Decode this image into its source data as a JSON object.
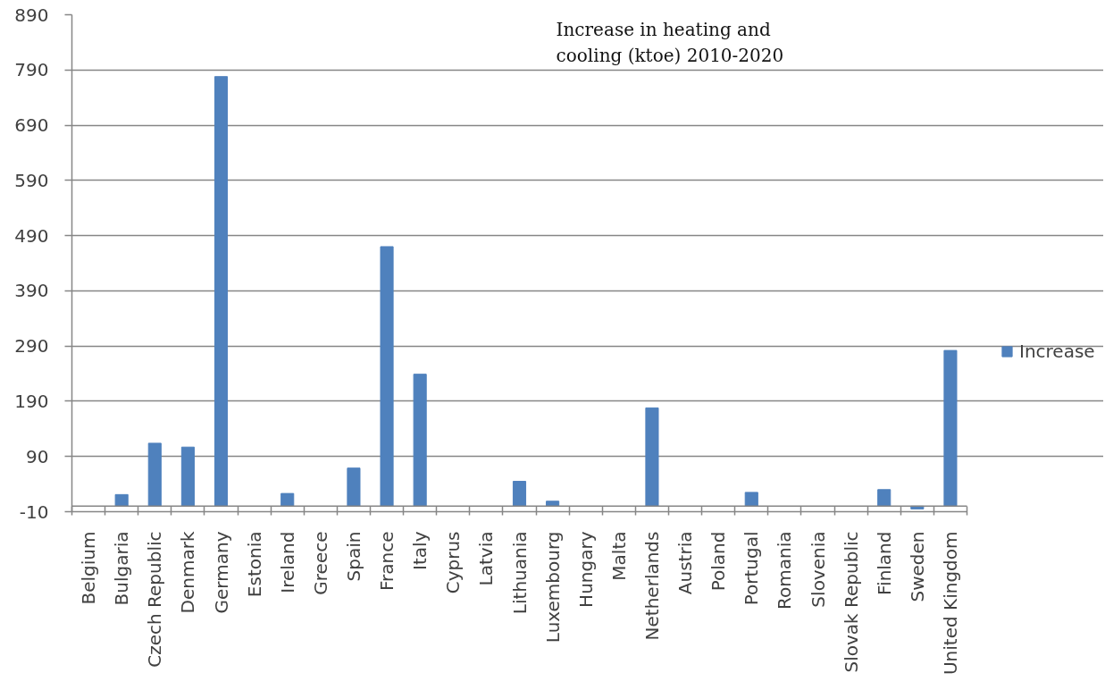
{
  "chart_data": {
    "type": "bar",
    "title": "Increase in heating and cooling (ktoe) 2010-2020",
    "categories": [
      "Belgium",
      "Bulgaria",
      "Czech Republic",
      "Denmark",
      "Germany",
      "Estonia",
      "Ireland",
      "Greece",
      "Spain",
      "France",
      "Italy",
      "Cyprus",
      "Latvia",
      "Lithuania",
      "Luxembourg",
      "Hungary",
      "Malta",
      "Netherlands",
      "Austria",
      "Poland",
      "Portugal",
      "Romania",
      "Slovenia",
      "Slovak Republic",
      "Finland",
      "Sweden",
      "United Kingdom"
    ],
    "series": [
      {
        "name": "Increase",
        "color": "#4f81bd",
        "values": [
          null,
          21,
          114,
          107,
          778,
          null,
          23,
          null,
          69,
          470,
          239,
          null,
          null,
          45,
          9,
          null,
          null,
          178,
          null,
          null,
          25,
          null,
          null,
          null,
          30,
          -5,
          282
        ]
      }
    ],
    "ylim": [
      -10,
      890
    ],
    "yticks": [
      -10,
      90,
      190,
      290,
      390,
      490,
      590,
      690,
      790,
      890
    ],
    "grid": "y",
    "legend": "right"
  }
}
